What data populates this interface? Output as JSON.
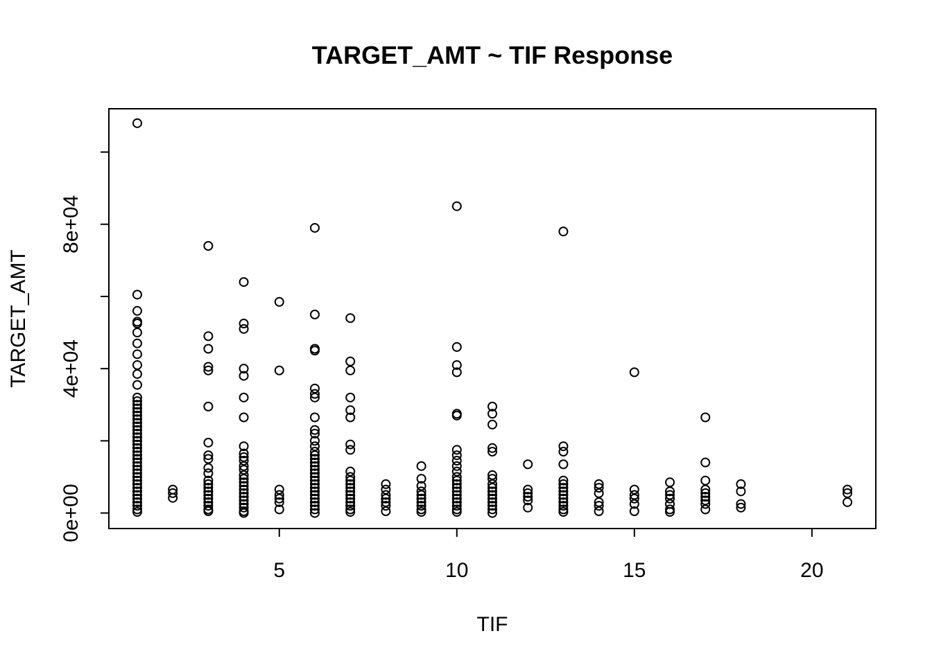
{
  "chart_data": {
    "type": "scatter",
    "title": "TARGET_AMT ~ TIF Response",
    "xlabel": "TIF",
    "ylabel": "TARGET_AMT",
    "xlim": [
      0.2,
      21.8
    ],
    "ylim": [
      -4300,
      112000
    ],
    "x_ticks": [
      5,
      10,
      15,
      20
    ],
    "x_tick_labels": [
      "5",
      "10",
      "15",
      "20"
    ],
    "y_ticks": [
      0,
      20000,
      40000,
      60000,
      80000,
      100000
    ],
    "y_tick_labels": [
      "0e+00",
      "",
      "4e+04",
      "",
      "8e+04",
      ""
    ],
    "grid": false,
    "legend": "none",
    "marker": "open-circle",
    "color": "#000000",
    "points": [
      [
        1,
        108000
      ],
      [
        1,
        60500
      ],
      [
        1,
        56000
      ],
      [
        1,
        53000
      ],
      [
        1,
        52500
      ],
      [
        1,
        50000
      ],
      [
        1,
        47000
      ],
      [
        1,
        44000
      ],
      [
        1,
        41000
      ],
      [
        1,
        38500
      ],
      [
        1,
        35500
      ],
      [
        1,
        32000
      ],
      [
        1,
        31000
      ],
      [
        1,
        30000
      ],
      [
        1,
        29000
      ],
      [
        1,
        28000
      ],
      [
        1,
        27000
      ],
      [
        1,
        26000
      ],
      [
        1,
        25000
      ],
      [
        1,
        24000
      ],
      [
        1,
        23000
      ],
      [
        1,
        22000
      ],
      [
        1,
        21000
      ],
      [
        1,
        20000
      ],
      [
        1,
        19000
      ],
      [
        1,
        18000
      ],
      [
        1,
        17000
      ],
      [
        1,
        16000
      ],
      [
        1,
        15000
      ],
      [
        1,
        14000
      ],
      [
        1,
        13000
      ],
      [
        1,
        12000
      ],
      [
        1,
        11000
      ],
      [
        1,
        10000
      ],
      [
        1,
        9000
      ],
      [
        1,
        8000
      ],
      [
        1,
        7000
      ],
      [
        1,
        6000
      ],
      [
        1,
        5000
      ],
      [
        1,
        4000
      ],
      [
        1,
        3000
      ],
      [
        1,
        2000
      ],
      [
        1,
        1000
      ],
      [
        1,
        300
      ],
      [
        2,
        6500
      ],
      [
        2,
        5500
      ],
      [
        2,
        4200
      ],
      [
        3,
        74000
      ],
      [
        3,
        49000
      ],
      [
        3,
        45500
      ],
      [
        3,
        40500
      ],
      [
        3,
        39500
      ],
      [
        3,
        29500
      ],
      [
        3,
        19500
      ],
      [
        3,
        16000
      ],
      [
        3,
        15000
      ],
      [
        3,
        12500
      ],
      [
        3,
        11000
      ],
      [
        3,
        9000
      ],
      [
        3,
        8000
      ],
      [
        3,
        7000
      ],
      [
        3,
        6000
      ],
      [
        3,
        5000
      ],
      [
        3,
        4000
      ],
      [
        3,
        3000
      ],
      [
        3,
        2000
      ],
      [
        3,
        1000
      ],
      [
        3,
        500
      ],
      [
        4,
        64000
      ],
      [
        4,
        52500
      ],
      [
        4,
        51000
      ],
      [
        4,
        40000
      ],
      [
        4,
        38000
      ],
      [
        4,
        32000
      ],
      [
        4,
        26500
      ],
      [
        4,
        18500
      ],
      [
        4,
        16500
      ],
      [
        4,
        15500
      ],
      [
        4,
        14500
      ],
      [
        4,
        13000
      ],
      [
        4,
        12000
      ],
      [
        4,
        10500
      ],
      [
        4,
        9500
      ],
      [
        4,
        8500
      ],
      [
        4,
        7500
      ],
      [
        4,
        6500
      ],
      [
        4,
        5500
      ],
      [
        4,
        4500
      ],
      [
        4,
        3500
      ],
      [
        4,
        2500
      ],
      [
        4,
        1500
      ],
      [
        4,
        500
      ],
      [
        4,
        0
      ],
      [
        5,
        58500
      ],
      [
        5,
        39500
      ],
      [
        5,
        6500
      ],
      [
        5,
        5000
      ],
      [
        5,
        4000
      ],
      [
        5,
        3000
      ],
      [
        5,
        1000
      ],
      [
        6,
        79000
      ],
      [
        6,
        55000
      ],
      [
        6,
        45500
      ],
      [
        6,
        45000
      ],
      [
        6,
        34500
      ],
      [
        6,
        33000
      ],
      [
        6,
        32000
      ],
      [
        6,
        26500
      ],
      [
        6,
        23000
      ],
      [
        6,
        22000
      ],
      [
        6,
        20000
      ],
      [
        6,
        18500
      ],
      [
        6,
        17000
      ],
      [
        6,
        16000
      ],
      [
        6,
        15000
      ],
      [
        6,
        14000
      ],
      [
        6,
        13000
      ],
      [
        6,
        12000
      ],
      [
        6,
        11000
      ],
      [
        6,
        10000
      ],
      [
        6,
        9000
      ],
      [
        6,
        8000
      ],
      [
        6,
        7000
      ],
      [
        6,
        6000
      ],
      [
        6,
        5000
      ],
      [
        6,
        4000
      ],
      [
        6,
        3000
      ],
      [
        6,
        2000
      ],
      [
        6,
        1000
      ],
      [
        6,
        0
      ],
      [
        7,
        54000
      ],
      [
        7,
        42000
      ],
      [
        7,
        39500
      ],
      [
        7,
        32000
      ],
      [
        7,
        28500
      ],
      [
        7,
        26500
      ],
      [
        7,
        19000
      ],
      [
        7,
        17500
      ],
      [
        7,
        11500
      ],
      [
        7,
        10000
      ],
      [
        7,
        9000
      ],
      [
        7,
        8000
      ],
      [
        7,
        7000
      ],
      [
        7,
        6000
      ],
      [
        7,
        5000
      ],
      [
        7,
        4000
      ],
      [
        7,
        3000
      ],
      [
        7,
        2000
      ],
      [
        7,
        1000
      ],
      [
        7,
        300
      ],
      [
        8,
        8000
      ],
      [
        8,
        6500
      ],
      [
        8,
        5000
      ],
      [
        8,
        4000
      ],
      [
        8,
        3000
      ],
      [
        8,
        2000
      ],
      [
        8,
        500
      ],
      [
        9,
        13000
      ],
      [
        9,
        9500
      ],
      [
        9,
        7500
      ],
      [
        9,
        6000
      ],
      [
        9,
        5000
      ],
      [
        9,
        4000
      ],
      [
        9,
        3000
      ],
      [
        9,
        2000
      ],
      [
        9,
        1000
      ],
      [
        9,
        300
      ],
      [
        10,
        85000
      ],
      [
        10,
        46000
      ],
      [
        10,
        41000
      ],
      [
        10,
        39000
      ],
      [
        10,
        27500
      ],
      [
        10,
        27000
      ],
      [
        10,
        17500
      ],
      [
        10,
        16000
      ],
      [
        10,
        14500
      ],
      [
        10,
        13000
      ],
      [
        10,
        11500
      ],
      [
        10,
        10000
      ],
      [
        10,
        9000
      ],
      [
        10,
        8000
      ],
      [
        10,
        7000
      ],
      [
        10,
        6000
      ],
      [
        10,
        5000
      ],
      [
        10,
        4000
      ],
      [
        10,
        3000
      ],
      [
        10,
        2000
      ],
      [
        10,
        1000
      ],
      [
        10,
        300
      ],
      [
        11,
        29500
      ],
      [
        11,
        27500
      ],
      [
        11,
        24500
      ],
      [
        11,
        18000
      ],
      [
        11,
        17000
      ],
      [
        11,
        10500
      ],
      [
        11,
        9500
      ],
      [
        11,
        8000
      ],
      [
        11,
        7000
      ],
      [
        11,
        6000
      ],
      [
        11,
        5000
      ],
      [
        11,
        4000
      ],
      [
        11,
        3000
      ],
      [
        11,
        2000
      ],
      [
        11,
        1000
      ],
      [
        11,
        0
      ],
      [
        12,
        13500
      ],
      [
        12,
        6500
      ],
      [
        12,
        5500
      ],
      [
        12,
        4500
      ],
      [
        12,
        3500
      ],
      [
        12,
        1500
      ],
      [
        13,
        78000
      ],
      [
        13,
        18500
      ],
      [
        13,
        17000
      ],
      [
        13,
        13500
      ],
      [
        13,
        9000
      ],
      [
        13,
        8000
      ],
      [
        13,
        7000
      ],
      [
        13,
        6000
      ],
      [
        13,
        5000
      ],
      [
        13,
        4000
      ],
      [
        13,
        3000
      ],
      [
        13,
        2000
      ],
      [
        13,
        1000
      ],
      [
        13,
        300
      ],
      [
        14,
        8000
      ],
      [
        14,
        7000
      ],
      [
        14,
        5500
      ],
      [
        14,
        3000
      ],
      [
        14,
        2000
      ],
      [
        14,
        500
      ],
      [
        15,
        39000
      ],
      [
        15,
        6500
      ],
      [
        15,
        5000
      ],
      [
        15,
        4000
      ],
      [
        15,
        2500
      ],
      [
        15,
        500
      ],
      [
        16,
        8500
      ],
      [
        16,
        6000
      ],
      [
        16,
        5000
      ],
      [
        16,
        4000
      ],
      [
        16,
        2500
      ],
      [
        16,
        1000
      ],
      [
        16,
        300
      ],
      [
        17,
        26500
      ],
      [
        17,
        14000
      ],
      [
        17,
        9000
      ],
      [
        17,
        6500
      ],
      [
        17,
        5500
      ],
      [
        17,
        4500
      ],
      [
        17,
        3500
      ],
      [
        17,
        2500
      ],
      [
        17,
        1000
      ],
      [
        18,
        8000
      ],
      [
        18,
        6000
      ],
      [
        18,
        2500
      ],
      [
        18,
        1500
      ],
      [
        21,
        6500
      ],
      [
        21,
        5500
      ],
      [
        21,
        3000
      ]
    ]
  }
}
